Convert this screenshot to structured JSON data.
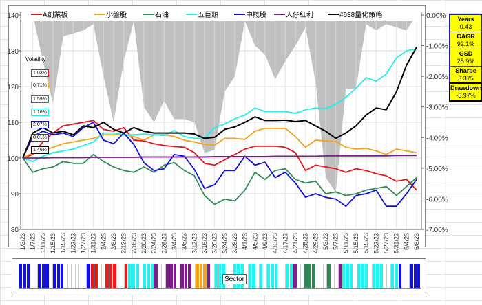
{
  "chart_data": {
    "type": "line",
    "x": [
      "1/3/23",
      "1/7/23",
      "1/11/23",
      "1/15/23",
      "1/19/23",
      "1/23/23",
      "1/27/23",
      "1/31/23",
      "2/4/23",
      "2/8/23",
      "2/12/23",
      "2/16/23",
      "2/20/23",
      "2/24/23",
      "2/28/23",
      "3/4/23",
      "3/8/23",
      "3/12/23",
      "3/16/23",
      "3/20/23",
      "3/24/23",
      "3/28/23",
      "4/1/23",
      "4/5/23",
      "4/9/23",
      "4/13/23",
      "4/17/23",
      "4/21/23",
      "4/25/23",
      "4/29/23",
      "5/3/23",
      "5/7/23",
      "5/11/23",
      "5/15/23",
      "5/19/23",
      "5/23/23",
      "5/27/23",
      "5/31/23",
      "6/4/23",
      "6/8/23"
    ],
    "ylim": [
      80,
      140
    ],
    "yticks": [
      "140",
      "130",
      "120",
      "110",
      "100",
      "90",
      "80"
    ],
    "y2lim": [
      -7,
      0
    ],
    "y2ticks": [
      "0.00%",
      "-1.00%",
      "-2.00%",
      "-3.00%",
      "-4.00%",
      "-5.00%",
      "-6.00%",
      "-7.00%"
    ],
    "grid": true,
    "legend": "top",
    "series": [
      {
        "name": "A創業板",
        "color": "#e8141c",
        "volatility": "1.03%",
        "values": [
          100,
          101,
          104.5,
          107,
          109,
          109.5,
          110,
          110.5,
          108,
          107.5,
          108.5,
          105,
          104.8,
          104,
          103.5,
          103.2,
          103,
          101.5,
          98.5,
          98,
          99.5,
          101,
          102.5,
          103.3,
          103.3,
          103.3,
          103,
          101.5,
          96.5,
          98,
          97.5,
          97,
          96,
          97,
          96.5,
          95.6,
          95,
          93.5,
          94,
          91
        ]
      },
      {
        "name": "小盤股",
        "color": "#f7a21b",
        "volatility": "0.71%",
        "values": [
          100,
          101.5,
          102,
          103,
          104,
          104.5,
          105,
          105.5,
          106.5,
          106.5,
          106.5,
          106,
          105,
          106.5,
          106.5,
          106,
          105,
          104.5,
          103.8,
          103.6,
          105.5,
          105.5,
          105.2,
          107.5,
          108.3,
          108.3,
          108.3,
          106,
          103,
          105,
          104.8,
          104.6,
          103,
          102.5,
          102.7,
          102,
          101,
          102.5,
          102,
          101.5
        ]
      },
      {
        "name": "石油",
        "color": "#2e8b57",
        "volatility": "1.59%",
        "values": [
          100,
          96,
          97,
          97.5,
          99,
          98.5,
          98.5,
          101,
          99,
          97.5,
          96.5,
          96,
          97.5,
          96,
          98,
          98.7,
          96.5,
          95,
          89.5,
          87,
          88.5,
          88,
          91,
          96,
          94,
          96.5,
          97,
          94,
          93,
          93.5,
          90,
          90.5,
          89.5,
          90,
          91,
          91.5,
          92,
          89.5,
          92,
          94.5
        ]
      },
      {
        "name": "五巨頭",
        "color": "#22eeee",
        "volatility": "1.16%",
        "values": [
          100,
          99,
          100.5,
          101.5,
          102,
          102.5,
          103.5,
          104.5,
          107,
          107,
          106.5,
          106.5,
          106.7,
          106.5,
          106.3,
          107.7,
          106,
          105.5,
          105.5,
          108.5,
          109.5,
          111,
          112,
          114,
          113,
          113,
          113,
          112.5,
          113.5,
          114,
          113.8,
          115,
          117,
          119.5,
          122.5,
          121.5,
          123.5,
          128,
          130,
          130.5
        ]
      },
      {
        "name": "中概股",
        "color": "#1010d8",
        "volatility": "2.07%",
        "values": [
          100,
          106,
          107.5,
          106.5,
          107,
          106,
          108.5,
          110,
          105,
          104,
          107,
          103.8,
          98.7,
          96.5,
          97,
          101,
          100.5,
          96.8,
          91.5,
          92.5,
          96.5,
          96.5,
          100.5,
          98,
          98.8,
          94.5,
          96,
          93,
          89,
          90,
          89,
          88.5,
          86.5,
          89.5,
          90,
          91,
          86.5,
          86.5,
          90,
          94
        ]
      },
      {
        "name": "人仔紅利",
        "color": "#7a1f8a",
        "volatility": "0.01%",
        "values": [
          100,
          100,
          100,
          100.1,
          100.1,
          100.1,
          100.1,
          100.2,
          100.2,
          100.2,
          100.2,
          100.2,
          100.3,
          100.3,
          100.3,
          100.3,
          100.3,
          100.3,
          100.3,
          100.4,
          100.4,
          100.4,
          100.4,
          100.4,
          100.4,
          100.5,
          100.5,
          100.5,
          100.5,
          100.5,
          100.6,
          100.6,
          100.6,
          100.6,
          100.6,
          100.6,
          100.6,
          100.7,
          100.7,
          100.7
        ]
      },
      {
        "name": "#638量化策略",
        "color": "#000000",
        "volatility": "1.46%",
        "values": [
          100,
          107,
          108.5,
          107,
          107.5,
          106.5,
          109,
          108.5,
          110,
          108,
          107,
          108.5,
          107.5,
          107,
          107,
          107,
          107,
          106.7,
          105.5,
          105.8,
          108,
          108.7,
          110,
          111.5,
          110.5,
          110.5,
          110.6,
          110.2,
          110.5,
          109,
          107.5,
          105.5,
          107,
          109,
          112,
          114,
          113.5,
          118.5,
          126,
          131
        ]
      }
    ],
    "drawdown": {
      "color": "#c0c0c0",
      "values": [
        0,
        0,
        -1.5,
        -2.9,
        -0.7,
        -0.6,
        -0.5,
        -0.3,
        -2.0,
        -3.5,
        -1.5,
        -0.2,
        -3.0,
        -3.5,
        -2.8,
        -3.4,
        -3.4,
        -3.5,
        -4.5,
        -4.4,
        -2.5,
        -2.0,
        -0.2,
        -1.0,
        -1.3,
        -2.1,
        -1.5,
        -1.0,
        -0.4,
        -2.2,
        -5.3,
        -5.8,
        -2.4,
        -2.4,
        -0.3,
        -0.5,
        -0.3,
        -0.4,
        -0.5,
        0
      ]
    }
  },
  "volatility_title": "Volatility",
  "stats": [
    {
      "label": "Years",
      "value": "0.43"
    },
    {
      "label": "CAGR",
      "value": "92.1%"
    },
    {
      "label": "GSD",
      "value": "25.9%"
    },
    {
      "label": "Sharpe",
      "value": "3.375"
    },
    {
      "label": "Drawdown",
      "value": "-5.97%"
    }
  ],
  "sector_band": {
    "label": "Sector",
    "colors": {
      "blue": "#1010e0",
      "red": "#f01818",
      "cyan": "#22f2f2",
      "purple": "#7d1b8e",
      "orange": "#f7a21b",
      "green": "#2e8b57"
    },
    "segments": [
      [
        "blue",
        3
      ],
      [
        "none",
        2
      ],
      [
        "blue",
        3
      ],
      [
        "none",
        1
      ],
      [
        "blue",
        3
      ],
      [
        "none",
        6
      ],
      [
        "blue",
        1
      ],
      [
        "red",
        2
      ],
      [
        "none",
        2
      ],
      [
        "red",
        3
      ],
      [
        "none",
        2
      ],
      [
        "red",
        1
      ],
      [
        "cyan",
        3
      ],
      [
        "none",
        1
      ],
      [
        "cyan",
        3
      ],
      [
        "purple",
        1
      ],
      [
        "none",
        2
      ],
      [
        "purple",
        3
      ],
      [
        "none",
        1
      ],
      [
        "purple",
        3
      ],
      [
        "none",
        1
      ],
      [
        "orange",
        3
      ],
      [
        "purple",
        1
      ],
      [
        "none",
        1
      ],
      [
        "cyan",
        3
      ],
      [
        "none",
        2
      ],
      [
        "cyan",
        3
      ],
      [
        "none",
        1
      ],
      [
        "cyan",
        2
      ],
      [
        "none",
        1
      ],
      [
        "cyan",
        1
      ],
      [
        "none",
        1
      ],
      [
        "cyan",
        3
      ],
      [
        "none",
        2
      ],
      [
        "cyan",
        2
      ],
      [
        "purple",
        1
      ],
      [
        "none",
        2
      ],
      [
        "green",
        3
      ],
      [
        "none",
        3
      ],
      [
        "green",
        1
      ],
      [
        "none",
        2
      ],
      [
        "purple",
        1
      ],
      [
        "cyan",
        3
      ],
      [
        "none",
        1
      ],
      [
        "cyan",
        3
      ],
      [
        "none",
        1
      ],
      [
        "cyan",
        3
      ],
      [
        "none",
        2
      ],
      [
        "cyan",
        2
      ],
      [
        "blue",
        1
      ],
      [
        "none",
        2
      ],
      [
        "blue",
        3
      ]
    ]
  }
}
